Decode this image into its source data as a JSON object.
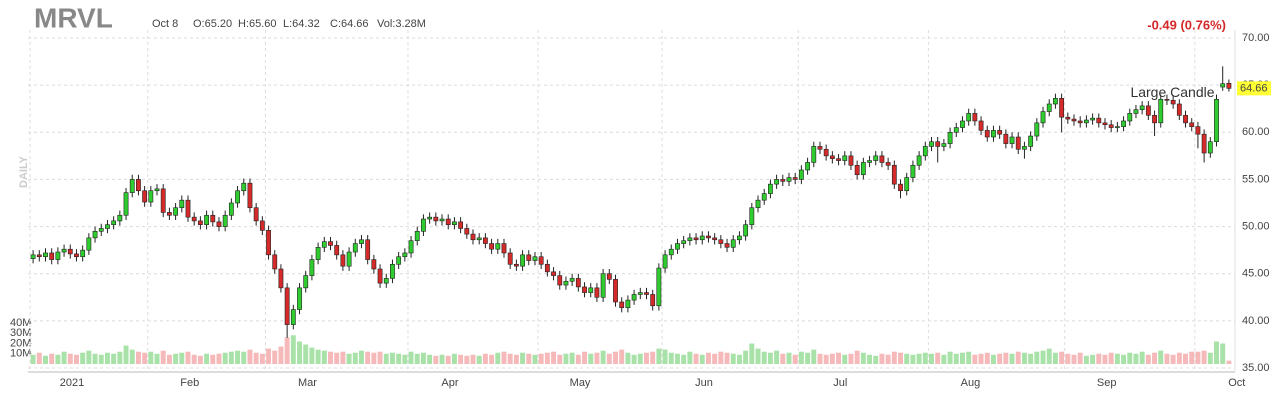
{
  "chart_data": {
    "type": "candlestick",
    "title": "MRVL",
    "header": {
      "date": "Oct 8",
      "open": "O:65.20",
      "high": "H:65.60",
      "low": "L:64.32",
      "close": "C:64.66",
      "volume": "Vol:3.28M"
    },
    "change": "-0.49 (0.76%)",
    "period_label": "DAILY",
    "annotation": "Large Candle",
    "up_color": "#2ecc2e",
    "down_color": "#d42a2a",
    "up_volume_color": "#a8e2a8",
    "down_volume_color": "#f6b9b9",
    "grid": true,
    "ylim": [
      35,
      70
    ],
    "yticks": [
      {
        "value": 35,
        "label": "35.00"
      },
      {
        "value": 40,
        "label": "40.00"
      },
      {
        "value": 45,
        "label": "45.00"
      },
      {
        "value": 50,
        "label": "50.00"
      },
      {
        "value": 55,
        "label": "55.00"
      },
      {
        "value": 60,
        "label": "60.00"
      },
      {
        "value": 65,
        "label": "65.00"
      },
      {
        "value": 70,
        "label": "70.00"
      }
    ],
    "volume_ylim": [
      0,
      40
    ],
    "volume_yticks": [
      {
        "value": 10,
        "label": "10M"
      },
      {
        "value": 20,
        "label": "20M"
      },
      {
        "value": 30,
        "label": "30M"
      },
      {
        "value": 40,
        "label": "40M"
      }
    ],
    "categories": [
      "2021",
      null,
      null,
      null,
      null,
      null,
      null,
      null,
      null,
      null,
      null,
      null,
      null,
      null,
      null,
      null,
      null,
      null,
      null,
      "Feb",
      null,
      null,
      null,
      null,
      null,
      null,
      null,
      null,
      null,
      null,
      null,
      null,
      null,
      null,
      null,
      null,
      null,
      null,
      "Mar",
      null,
      null,
      null,
      null,
      null,
      null,
      null,
      null,
      null,
      null,
      null,
      null,
      null,
      null,
      null,
      null,
      null,
      null,
      null,
      null,
      null,
      null,
      "Apr",
      null,
      null,
      null,
      null,
      null,
      null,
      null,
      null,
      null,
      null,
      null,
      null,
      null,
      null,
      null,
      null,
      null,
      null,
      null,
      null,
      "May",
      null,
      null,
      null,
      null,
      null,
      null,
      null,
      null,
      null,
      null,
      null,
      null,
      null,
      null,
      null,
      null,
      null,
      null,
      null,
      "Jun",
      null,
      null,
      null,
      null,
      null,
      null,
      null,
      null,
      null,
      null,
      null,
      null,
      null,
      null,
      null,
      null,
      null,
      null,
      null,
      null,
      null,
      "Jul",
      null,
      null,
      null,
      null,
      null,
      null,
      null,
      null,
      null,
      null,
      null,
      null,
      null,
      null,
      null,
      null,
      null,
      null,
      null,
      null,
      "Aug",
      null,
      null,
      null,
      null,
      null,
      null,
      null,
      null,
      null,
      null,
      null,
      null,
      null,
      null,
      null,
      null,
      null,
      null,
      null,
      null,
      null,
      "Sep",
      null,
      null,
      null,
      null,
      null,
      null,
      null,
      null,
      null,
      null,
      null,
      null,
      null,
      null,
      null,
      null,
      null,
      null,
      null,
      null,
      "Oct",
      null,
      null,
      null,
      null,
      null
    ],
    "open": [
      46.6,
      47.0,
      46.8,
      47.2,
      46.5,
      47.3,
      47.6,
      47.1,
      46.8,
      47.5,
      48.8,
      49.5,
      49.8,
      50.2,
      50.6,
      51.2,
      53.6,
      55.0,
      53.8,
      52.6,
      53.8,
      54.0,
      51.5,
      51.2,
      52.0,
      52.8,
      51.0,
      50.6,
      50.2,
      51.2,
      50.5,
      50.0,
      51.2,
      52.5,
      53.8,
      54.6,
      52.0,
      50.6,
      49.6,
      47.0,
      45.5,
      43.5,
      39.6,
      41.2,
      43.5,
      44.8,
      46.5,
      47.8,
      48.4,
      48.0,
      47.0,
      45.8,
      47.3,
      48.2,
      48.6,
      46.5,
      45.5,
      44.0,
      44.5,
      46.0,
      46.8,
      47.2,
      48.5,
      49.5,
      50.8,
      51.0,
      50.6,
      50.8,
      50.2,
      50.5,
      49.8,
      49.2,
      48.6,
      48.8,
      48.2,
      47.6,
      48.2,
      47.2,
      46.0,
      45.8,
      47.0,
      46.4,
      46.8,
      46.0,
      45.2,
      44.8,
      43.8,
      44.2,
      44.5,
      43.6,
      43.0,
      43.5,
      42.5,
      45.0,
      44.4,
      42.0,
      41.4,
      42.2,
      42.8,
      43.0,
      42.8,
      41.6,
      45.6,
      47.0,
      47.6,
      48.2,
      48.5,
      48.8,
      48.6,
      49.0,
      48.8,
      48.6,
      48.2,
      47.8,
      48.6,
      49.0,
      50.2,
      52.0,
      52.8,
      53.5,
      54.5,
      55.0,
      54.8,
      55.2,
      55.0,
      56.0,
      56.8,
      58.5,
      58.2,
      57.5,
      57.2,
      57.0,
      57.5,
      56.5,
      55.5,
      56.8,
      57.0,
      57.5,
      56.8,
      56.5,
      54.5,
      53.8,
      55.2,
      56.5,
      57.5,
      58.5,
      59.0,
      58.5,
      58.8,
      60.0,
      60.5,
      61.2,
      62.0,
      61.2,
      60.2,
      59.5,
      60.2,
      59.8,
      58.8,
      59.5,
      58.2,
      58.5,
      59.6,
      61.0,
      62.2,
      63.0,
      63.6,
      61.6,
      61.4,
      61.2,
      61.0,
      61.3,
      61.5,
      61.0,
      60.8,
      60.5,
      60.6,
      61.2,
      62.0,
      62.4,
      62.8,
      61.8,
      61.0,
      63.5,
      63.4,
      63.0,
      61.8,
      61.0,
      60.6,
      59.8,
      57.8,
      59.0,
      64.8,
      65.2
    ],
    "high": [
      47.5,
      47.5,
      47.7,
      47.7,
      47.8,
      48.1,
      48.1,
      47.6,
      48.0,
      49.3,
      50.0,
      50.3,
      50.7,
      51.1,
      51.7,
      54.1,
      55.5,
      55.5,
      54.3,
      54.3,
      54.5,
      54.5,
      52.0,
      52.5,
      53.3,
      53.3,
      51.5,
      51.1,
      51.7,
      51.7,
      51.0,
      51.7,
      53.0,
      54.3,
      55.1,
      55.1,
      52.5,
      51.1,
      50.1,
      47.5,
      46.0,
      44.0,
      41.7,
      44.0,
      45.3,
      47.0,
      48.3,
      48.9,
      48.9,
      48.5,
      47.5,
      47.8,
      48.7,
      49.1,
      49.1,
      47.0,
      46.0,
      45.0,
      46.5,
      47.3,
      47.7,
      49.0,
      50.0,
      51.3,
      51.5,
      51.5,
      51.3,
      51.3,
      51.0,
      51.0,
      50.3,
      49.7,
      49.3,
      49.3,
      48.7,
      48.7,
      48.7,
      47.7,
      46.5,
      47.5,
      47.5,
      47.3,
      47.3,
      46.5,
      45.7,
      45.3,
      44.7,
      45.0,
      45.0,
      44.1,
      44.0,
      44.0,
      45.5,
      45.5,
      44.9,
      42.5,
      42.7,
      43.3,
      43.5,
      43.5,
      43.3,
      46.1,
      47.5,
      48.1,
      48.7,
      49.0,
      49.3,
      49.3,
      49.5,
      49.5,
      49.3,
      49.1,
      48.7,
      49.1,
      49.5,
      50.7,
      52.5,
      53.3,
      54.0,
      55.0,
      55.5,
      55.5,
      55.7,
      55.7,
      56.5,
      57.3,
      59.0,
      59.0,
      58.7,
      58.0,
      57.7,
      58.0,
      58.0,
      57.0,
      57.3,
      57.5,
      58.0,
      58.0,
      57.3,
      57.0,
      55.0,
      55.7,
      57.0,
      58.0,
      59.0,
      59.5,
      59.5,
      59.3,
      60.5,
      61.0,
      61.7,
      62.5,
      62.5,
      61.7,
      60.7,
      60.7,
      60.7,
      60.3,
      60.0,
      60.0,
      59.0,
      60.1,
      61.5,
      62.7,
      63.5,
      64.1,
      64.1,
      62.1,
      61.9,
      61.7,
      61.8,
      62.0,
      62.0,
      61.5,
      61.3,
      61.1,
      61.7,
      62.5,
      62.9,
      63.3,
      63.3,
      62.3,
      64.0,
      64.0,
      63.9,
      63.5,
      62.3,
      61.5,
      61.1,
      60.3,
      59.5,
      64.0,
      67.0,
      65.6
    ],
    "low": [
      46.1,
      46.3,
      46.3,
      46.0,
      46.0,
      46.8,
      46.6,
      46.3,
      46.3,
      47.0,
      48.3,
      49.0,
      49.3,
      49.7,
      50.1,
      50.7,
      53.1,
      53.3,
      52.1,
      52.1,
      53.3,
      51.0,
      50.7,
      50.7,
      51.5,
      50.5,
      50.1,
      49.7,
      49.7,
      50.0,
      49.5,
      49.5,
      50.7,
      52.0,
      53.3,
      51.5,
      50.1,
      49.1,
      46.5,
      45.0,
      43.0,
      38.2,
      39.1,
      40.7,
      43.0,
      44.3,
      46.0,
      47.3,
      47.5,
      46.5,
      45.3,
      45.3,
      46.8,
      47.7,
      46.0,
      45.0,
      43.5,
      43.5,
      44.0,
      45.5,
      46.3,
      46.7,
      48.0,
      49.0,
      50.3,
      50.1,
      50.1,
      49.7,
      49.7,
      49.3,
      48.7,
      48.1,
      48.1,
      47.7,
      47.1,
      47.1,
      46.7,
      45.5,
      45.3,
      45.3,
      45.9,
      45.9,
      45.5,
      44.7,
      44.3,
      43.3,
      43.3,
      43.7,
      43.1,
      42.5,
      42.5,
      42.0,
      42.0,
      43.9,
      41.5,
      40.9,
      40.9,
      41.7,
      42.3,
      42.3,
      41.1,
      41.1,
      45.1,
      46.5,
      47.1,
      47.7,
      48.0,
      48.1,
      48.1,
      48.3,
      48.1,
      47.7,
      47.3,
      47.3,
      48.1,
      48.5,
      49.7,
      51.5,
      52.3,
      53.0,
      54.0,
      54.3,
      54.3,
      54.5,
      54.5,
      55.5,
      56.3,
      57.7,
      57.0,
      56.7,
      56.5,
      56.5,
      56.0,
      55.0,
      55.0,
      56.3,
      56.5,
      56.3,
      56.0,
      54.0,
      53.0,
      53.3,
      54.7,
      56.0,
      57.0,
      58.0,
      56.8,
      58.0,
      58.3,
      59.5,
      60.0,
      60.7,
      60.7,
      59.7,
      59.0,
      59.0,
      59.3,
      58.3,
      58.3,
      57.7,
      57.2,
      58.0,
      59.1,
      60.5,
      61.7,
      62.5,
      60.0,
      60.9,
      60.7,
      60.5,
      60.5,
      60.8,
      60.5,
      60.3,
      60.0,
      60.0,
      60.1,
      60.7,
      61.5,
      61.9,
      61.3,
      59.6,
      60.5,
      62.9,
      62.5,
      61.3,
      60.5,
      60.1,
      58.3,
      56.8,
      57.3,
      58.5,
      64.4,
      64.32
    ],
    "close": [
      47.0,
      46.8,
      47.2,
      46.5,
      47.3,
      47.6,
      47.1,
      46.8,
      47.5,
      48.8,
      49.5,
      49.8,
      50.2,
      50.6,
      51.2,
      53.6,
      55.0,
      53.8,
      52.6,
      53.8,
      54.0,
      51.5,
      51.2,
      52.0,
      52.8,
      51.0,
      50.6,
      50.2,
      51.2,
      50.5,
      50.0,
      51.2,
      52.5,
      53.8,
      54.6,
      52.0,
      50.6,
      49.6,
      47.0,
      45.5,
      43.5,
      39.6,
      41.2,
      43.5,
      44.8,
      46.5,
      47.8,
      48.4,
      48.0,
      47.0,
      45.8,
      47.3,
      48.2,
      48.6,
      46.5,
      45.5,
      44.0,
      44.5,
      46.0,
      46.8,
      47.2,
      48.5,
      49.5,
      50.8,
      51.0,
      50.6,
      50.8,
      50.2,
      50.5,
      49.8,
      49.2,
      48.6,
      48.8,
      48.2,
      47.6,
      48.2,
      47.2,
      46.0,
      45.8,
      47.0,
      46.4,
      46.8,
      46.0,
      45.2,
      44.8,
      43.8,
      44.2,
      44.5,
      43.6,
      43.0,
      43.5,
      42.5,
      45.0,
      44.4,
      42.0,
      41.4,
      42.2,
      42.8,
      43.0,
      42.8,
      41.6,
      45.6,
      47.0,
      47.6,
      48.2,
      48.5,
      48.8,
      48.6,
      49.0,
      48.8,
      48.6,
      48.2,
      47.8,
      48.6,
      49.0,
      50.2,
      52.0,
      52.8,
      53.5,
      54.5,
      55.0,
      54.8,
      55.2,
      55.0,
      56.0,
      56.8,
      58.5,
      58.2,
      57.5,
      57.2,
      57.0,
      57.5,
      56.5,
      55.5,
      56.8,
      57.0,
      57.5,
      56.8,
      56.5,
      54.5,
      53.8,
      55.2,
      56.5,
      57.5,
      58.5,
      59.0,
      58.5,
      58.8,
      60.0,
      60.5,
      61.2,
      62.0,
      61.2,
      60.2,
      59.5,
      60.2,
      59.8,
      58.8,
      59.5,
      58.2,
      58.5,
      59.6,
      61.0,
      62.2,
      63.0,
      63.6,
      61.6,
      61.4,
      61.2,
      61.0,
      61.3,
      61.5,
      61.0,
      60.8,
      60.5,
      60.6,
      61.2,
      62.0,
      62.4,
      62.8,
      61.8,
      61.0,
      63.5,
      63.4,
      63.0,
      61.8,
      61.0,
      60.6,
      59.8,
      57.8,
      59.0,
      63.5,
      65.15,
      64.66
    ],
    "volume": [
      9,
      11,
      8,
      10,
      9,
      12,
      10,
      9,
      11,
      13,
      10,
      9,
      11,
      10,
      12,
      18,
      14,
      12,
      11,
      12,
      10,
      13,
      9,
      10,
      11,
      12,
      9,
      8,
      10,
      9,
      10,
      11,
      12,
      13,
      12,
      14,
      11,
      10,
      15,
      13,
      17,
      26,
      28,
      22,
      19,
      16,
      14,
      13,
      12,
      11,
      12,
      10,
      11,
      13,
      12,
      11,
      12,
      10,
      11,
      10,
      9,
      12,
      10,
      11,
      9,
      8,
      9,
      8,
      10,
      9,
      8,
      9,
      8,
      10,
      9,
      11,
      12,
      10,
      9,
      11,
      10,
      9,
      10,
      11,
      12,
      9,
      10,
      11,
      9,
      12,
      10,
      11,
      13,
      10,
      12,
      14,
      11,
      9,
      10,
      11,
      12,
      15,
      14,
      11,
      10,
      9,
      12,
      10,
      9,
      11,
      10,
      12,
      11,
      10,
      9,
      13,
      20,
      15,
      12,
      11,
      13,
      10,
      11,
      9,
      12,
      11,
      14,
      10,
      9,
      10,
      11,
      9,
      10,
      13,
      11,
      9,
      8,
      10,
      9,
      12,
      11,
      10,
      9,
      10,
      11,
      10,
      11,
      9,
      12,
      10,
      11,
      12,
      9,
      10,
      11,
      9,
      10,
      11,
      10,
      12,
      11,
      10,
      12,
      13,
      15,
      11,
      12,
      10,
      9,
      11,
      8,
      9,
      10,
      9,
      11,
      10,
      9,
      11,
      10,
      12,
      9,
      11,
      13,
      10,
      9,
      11,
      10,
      12,
      12,
      13,
      11,
      22,
      20,
      3.28
    ]
  }
}
